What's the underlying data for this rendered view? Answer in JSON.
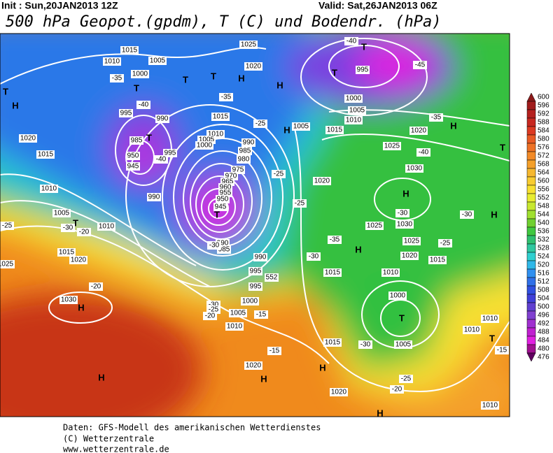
{
  "header": {
    "init": "Init : Sun,20JAN2013 12Z",
    "valid": "Valid: Sat,26JAN2013 06Z",
    "title": "500 hPa Geopot.(gpdm), T (C) und Bodendr. (hPa)"
  },
  "colorbar": {
    "ticks": [
      600,
      596,
      592,
      588,
      584,
      580,
      576,
      572,
      568,
      564,
      560,
      556,
      552,
      548,
      544,
      540,
      536,
      532,
      528,
      524,
      520,
      516,
      512,
      508,
      504,
      500,
      496,
      492,
      488,
      484,
      480,
      476
    ],
    "colors": [
      "#8c1a1a",
      "#a01c1c",
      "#b4201e",
      "#c82820",
      "#dc3a22",
      "#e85a24",
      "#ee7226",
      "#f28a28",
      "#f4a02a",
      "#f6b830",
      "#f8cc30",
      "#f8e030",
      "#e8ec30",
      "#c8e830",
      "#a0e030",
      "#70d030",
      "#40c840",
      "#30c070",
      "#30c8a0",
      "#30d0d0",
      "#30b8e8",
      "#3090f0",
      "#3070e8",
      "#3050e0",
      "#4040d8",
      "#6040d0",
      "#8040d0",
      "#a030d0",
      "#c020d0",
      "#e020e0",
      "#a01090",
      "#600060"
    ]
  },
  "map_labels": [
    "1015",
    "1010",
    "1005",
    "1000",
    "T",
    "T",
    "T",
    "H",
    "1020",
    "1025",
    "H",
    "T",
    "T",
    "995",
    "1000",
    "1005",
    "1010",
    "1015",
    "1020",
    "1005",
    "H",
    "H",
    "T",
    "995",
    "990",
    "T",
    "985",
    "995",
    "950",
    "945",
    "990",
    "1015",
    "1010",
    "1005",
    "1000",
    "990",
    "985",
    "980",
    "975",
    "970",
    "965",
    "960",
    "955",
    "950",
    "945",
    "T",
    "990",
    "985",
    "1020",
    "1015",
    "1010",
    "1005",
    "T",
    "1010",
    "1015",
    "1020",
    "1025",
    "995",
    "990",
    "995",
    "1000",
    "1005",
    "1010",
    "1030",
    "H",
    "H",
    "H",
    "H",
    "1020",
    "1015",
    "1020",
    "H",
    "1025",
    "1030",
    "H",
    "H",
    "1025",
    "1030",
    "1025",
    "1020",
    "1015",
    "1010",
    "1015",
    "1020",
    "1000",
    "T",
    "1005",
    "1010",
    "1010",
    "T",
    "1010",
    "H",
    "H",
    "T",
    "-40",
    "-40",
    "-35",
    "-35",
    "-30",
    "-30",
    "-25",
    "-20",
    "-20",
    "-25",
    "-25",
    "-30",
    "-30",
    "-25",
    "-25",
    "-40",
    "-35",
    "-45",
    "-40",
    "-30",
    "-35",
    "-30",
    "-30",
    "-25",
    "-20",
    "-15",
    "-15",
    "-15",
    "-20",
    "-25",
    "552"
  ],
  "footer": [
    "Daten: GFS-Modell des amerikanischen Wetterdienstes",
    "(C) Wetterzentrale",
    "www.wetterzentrale.de"
  ]
}
